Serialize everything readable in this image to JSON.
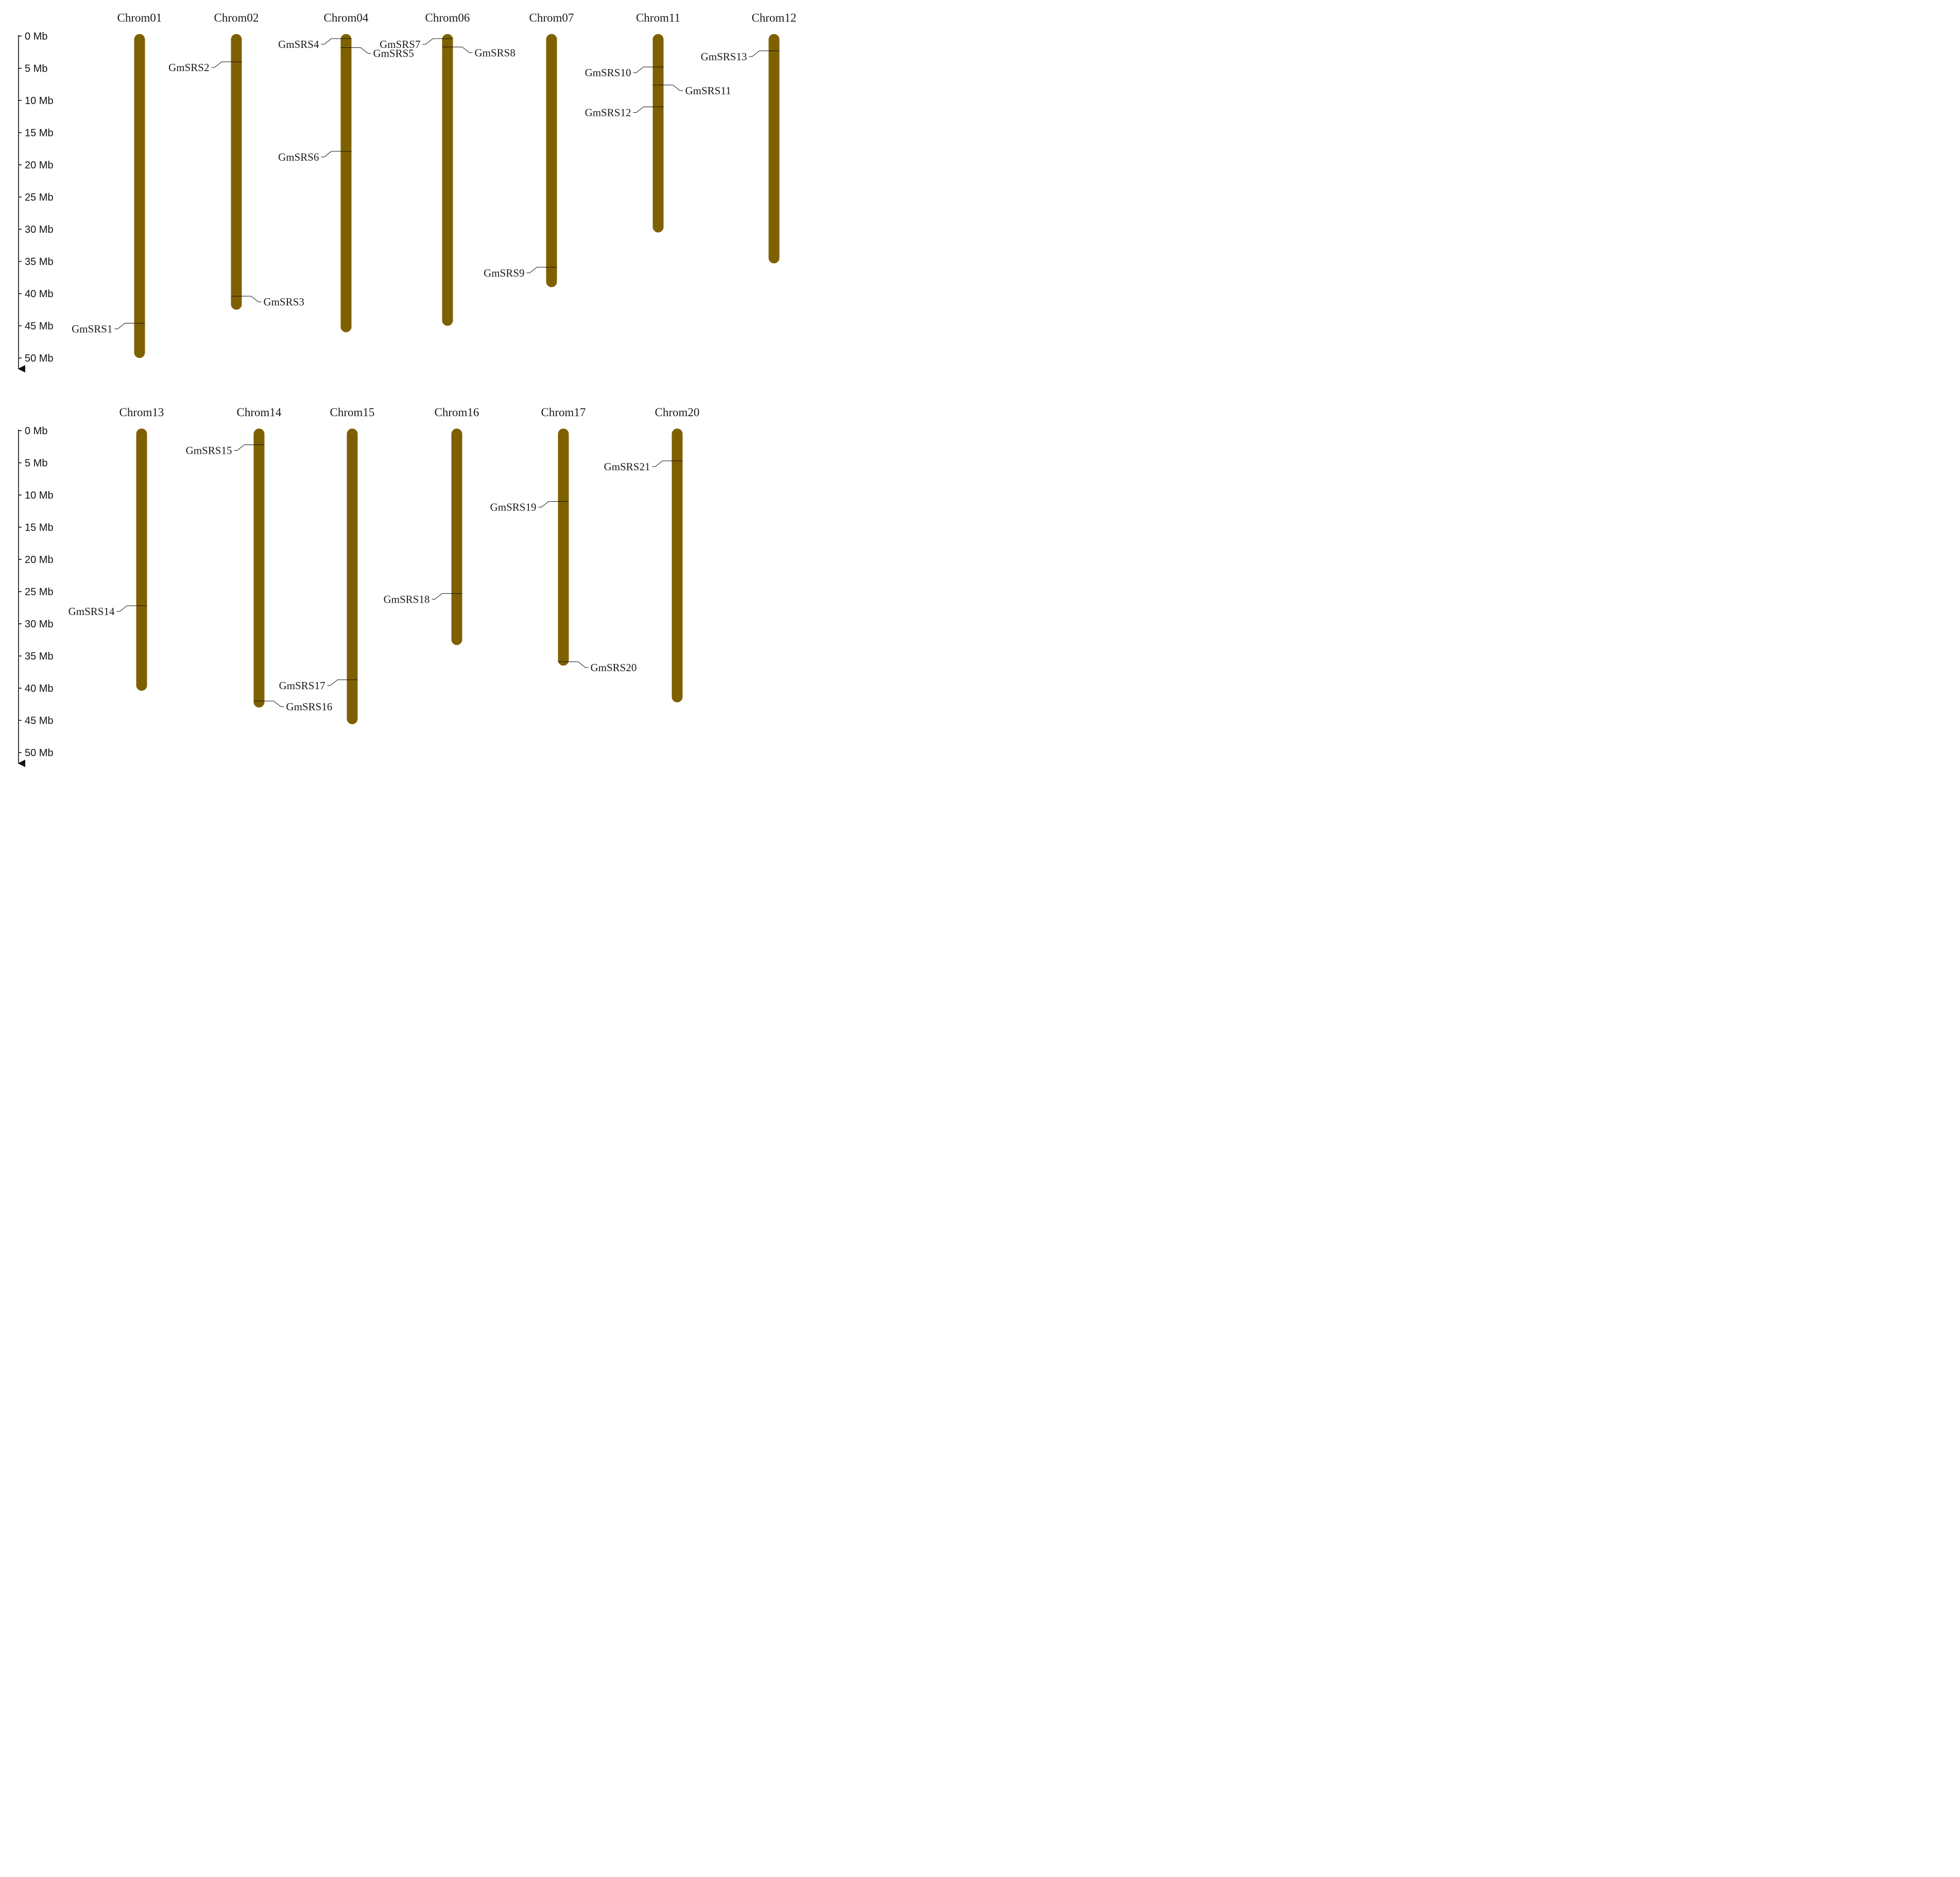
{
  "colors": {
    "chromosome": "#7f6000",
    "line": "#111111",
    "text": "#1a1a1a"
  },
  "axis_unit": "Mb",
  "tick_values": [
    0,
    5,
    10,
    15,
    20,
    25,
    30,
    35,
    40,
    45,
    50
  ],
  "tick_labels": [
    "0 Mb",
    "5 Mb",
    "10 Mb",
    "15 Mb",
    "20 Mb",
    "25 Mb",
    "30 Mb",
    "35 Mb",
    "40 Mb",
    "45 Mb",
    "50 Mb"
  ],
  "panels": [
    {
      "chromosomes": [
        {
          "name": "Chrom01",
          "length_mb": 50,
          "genes": [
            {
              "name": "GmSRS1",
              "pos_mb": 44.6,
              "side": "left"
            }
          ]
        },
        {
          "name": "Chrom02",
          "length_mb": 42.5,
          "genes": [
            {
              "name": "GmSRS2",
              "pos_mb": 4.0,
              "side": "left"
            },
            {
              "name": "GmSRS3",
              "pos_mb": 40.4,
              "side": "right"
            }
          ]
        },
        {
          "name": "Chrom04",
          "length_mb": 46,
          "genes": [
            {
              "name": "GmSRS4",
              "pos_mb": 0.4,
              "side": "left"
            },
            {
              "name": "GmSRS5",
              "pos_mb": 1.8,
              "side": "right"
            },
            {
              "name": "GmSRS6",
              "pos_mb": 17.9,
              "side": "left"
            }
          ]
        },
        {
          "name": "Chrom06",
          "length_mb": 45,
          "genes": [
            {
              "name": "GmSRS7",
              "pos_mb": 0.4,
              "side": "left"
            },
            {
              "name": "GmSRS8",
              "pos_mb": 1.7,
              "side": "right"
            }
          ]
        },
        {
          "name": "Chrom07",
          "length_mb": 39,
          "genes": [
            {
              "name": "GmSRS9",
              "pos_mb": 35.9,
              "side": "left"
            }
          ]
        },
        {
          "name": "Chrom11",
          "length_mb": 30.5,
          "genes": [
            {
              "name": "GmSRS10",
              "pos_mb": 4.8,
              "side": "left"
            },
            {
              "name": "GmSRS11",
              "pos_mb": 7.6,
              "side": "right"
            },
            {
              "name": "GmSRS12",
              "pos_mb": 11.0,
              "side": "left"
            }
          ]
        },
        {
          "name": "Chrom12",
          "length_mb": 35.3,
          "genes": [
            {
              "name": "GmSRS13",
              "pos_mb": 2.3,
              "side": "left"
            }
          ]
        }
      ]
    },
    {
      "chromosomes": [
        {
          "name": "Chrom13",
          "length_mb": 40.4,
          "genes": [
            {
              "name": "GmSRS14",
              "pos_mb": 27.2,
              "side": "left"
            }
          ]
        },
        {
          "name": "Chrom14",
          "length_mb": 43,
          "genes": [
            {
              "name": "GmSRS15",
              "pos_mb": 2.2,
              "side": "left"
            },
            {
              "name": "GmSRS16",
              "pos_mb": 42.0,
              "side": "right"
            }
          ]
        },
        {
          "name": "Chrom15",
          "length_mb": 45.6,
          "genes": [
            {
              "name": "GmSRS17",
              "pos_mb": 38.7,
              "side": "left"
            }
          ]
        },
        {
          "name": "Chrom16",
          "length_mb": 33.3,
          "genes": [
            {
              "name": "GmSRS18",
              "pos_mb": 25.3,
              "side": "left"
            }
          ]
        },
        {
          "name": "Chrom17",
          "length_mb": 36.5,
          "genes": [
            {
              "name": "GmSRS19",
              "pos_mb": 11.0,
              "side": "left"
            },
            {
              "name": "GmSRS20",
              "pos_mb": 35.9,
              "side": "right"
            }
          ]
        },
        {
          "name": "Chrom20",
          "length_mb": 42.2,
          "genes": [
            {
              "name": "GmSRS21",
              "pos_mb": 4.7,
              "side": "left"
            }
          ]
        }
      ]
    }
  ]
}
